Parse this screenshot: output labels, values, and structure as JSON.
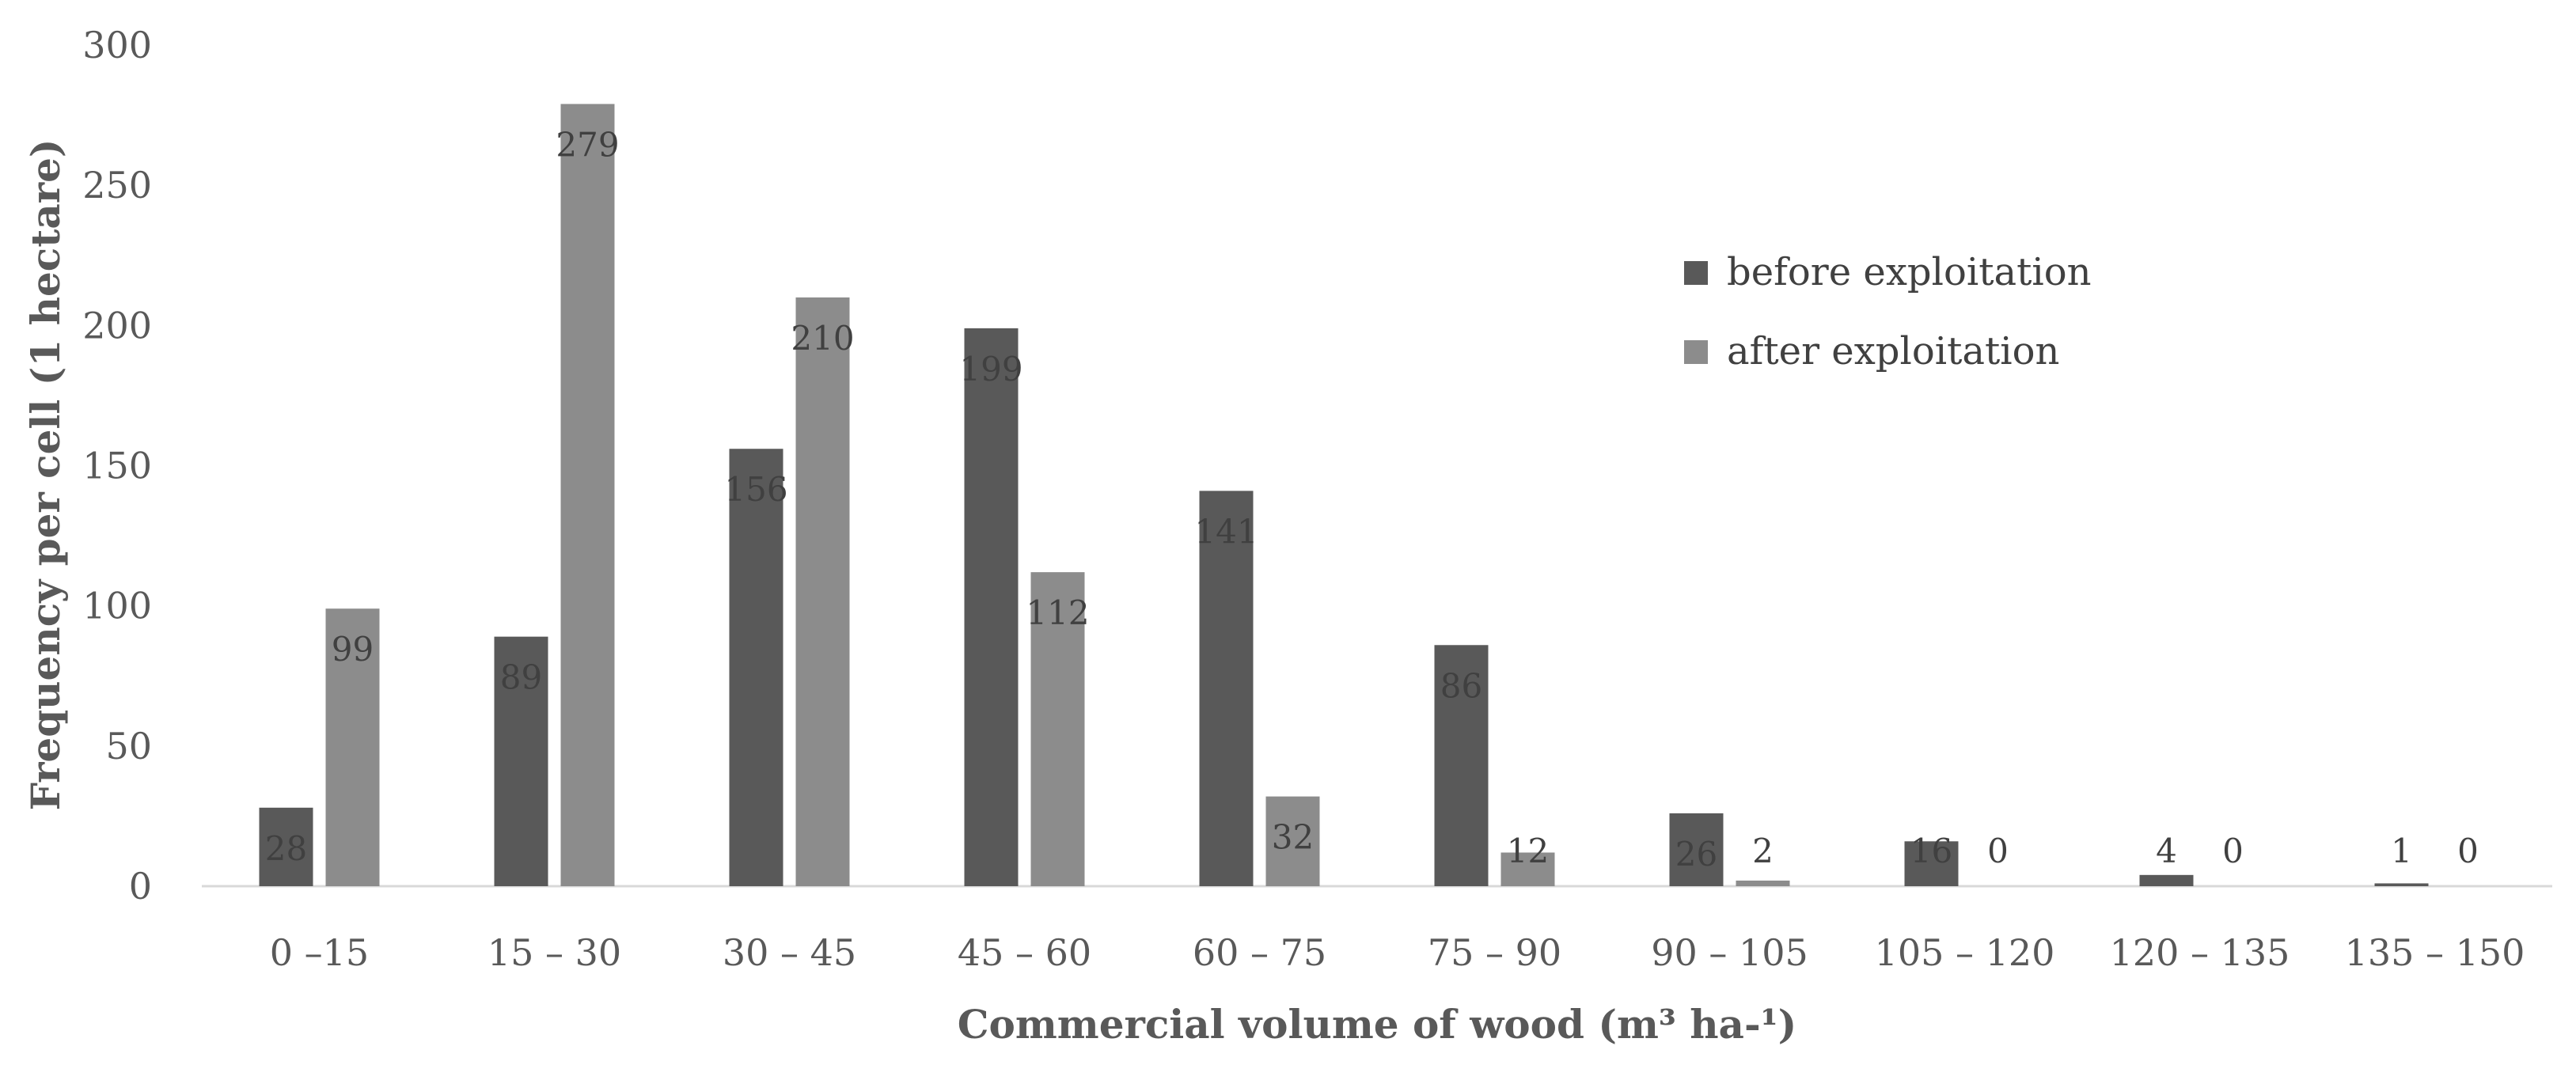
{
  "chart_data": {
    "type": "bar",
    "categories": [
      "0 –15",
      "15 – 30",
      "30 – 45",
      "45 – 60",
      "60 – 75",
      "75 – 90",
      "90 – 105",
      "105 – 120",
      "120 – 135",
      "135 – 150"
    ],
    "series": [
      {
        "name": "before exploitation",
        "values": [
          28,
          89,
          156,
          199,
          141,
          86,
          26,
          16,
          4,
          1
        ],
        "color": "#595959"
      },
      {
        "name": "after exploitation",
        "values": [
          99,
          279,
          210,
          112,
          32,
          12,
          2,
          0,
          0,
          0
        ],
        "color": "#8c8c8c"
      }
    ],
    "xlabel": "Commercial volume of wood (m³ ha-¹)",
    "ylabel": "Frequency per cell (1 hectare)",
    "ylim": [
      0,
      300
    ],
    "yticks": [
      0,
      50,
      100,
      150,
      200,
      250,
      300
    ],
    "grid": false,
    "legend_position": "right"
  }
}
